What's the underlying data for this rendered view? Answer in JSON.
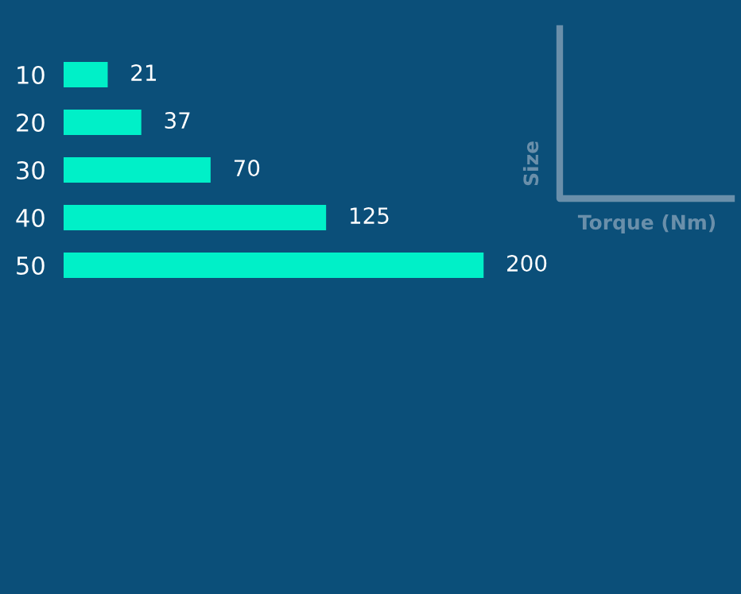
{
  "chart_data": {
    "type": "bar",
    "orientation": "horizontal",
    "categories": [
      "10",
      "20",
      "30",
      "40",
      "50"
    ],
    "values": [
      21,
      37,
      70,
      125,
      200
    ],
    "color": "#00f0c8",
    "data_labels": true,
    "xlabel": "Torque (Nm)",
    "ylabel": "Size"
  }
}
